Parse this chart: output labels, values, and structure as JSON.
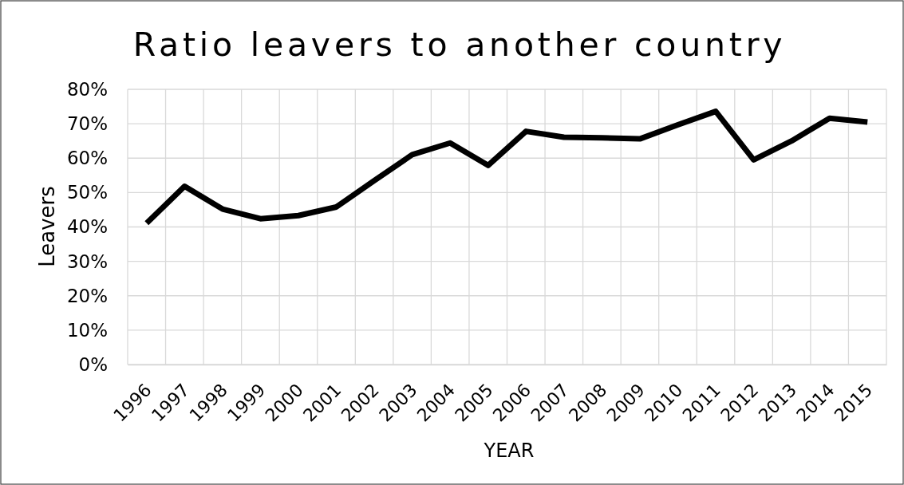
{
  "chart_data": {
    "type": "line",
    "title": "Ratio leavers to another country",
    "xlabel": "YEAR",
    "ylabel": "Leavers",
    "categories": [
      "1996",
      "1997",
      "1998",
      "1999",
      "2000",
      "2001",
      "2002",
      "2003",
      "2004",
      "2005",
      "2006",
      "2007",
      "2008",
      "2009",
      "2010",
      "2011",
      "2012",
      "2013",
      "2014",
      "2015"
    ],
    "series": [
      {
        "color": "#000000",
        "values": [
          41.1,
          51.8,
          45.2,
          42.4,
          43.3,
          45.8,
          53.5,
          61.0,
          64.4,
          57.9,
          67.8,
          66.1,
          65.9,
          65.6,
          69.7,
          73.6,
          59.5,
          65.0,
          71.6,
          70.5
        ]
      }
    ],
    "ylim": [
      0,
      80
    ],
    "yticks": [
      {
        "value": 0,
        "label": "0%"
      },
      {
        "value": 10,
        "label": "10%"
      },
      {
        "value": 20,
        "label": "20%"
      },
      {
        "value": 30,
        "label": "30%"
      },
      {
        "value": 40,
        "label": "40%"
      },
      {
        "value": 50,
        "label": "50%"
      },
      {
        "value": 60,
        "label": "60%"
      },
      {
        "value": 70,
        "label": "70%"
      },
      {
        "value": 80,
        "label": "80%"
      }
    ],
    "grid": true
  }
}
